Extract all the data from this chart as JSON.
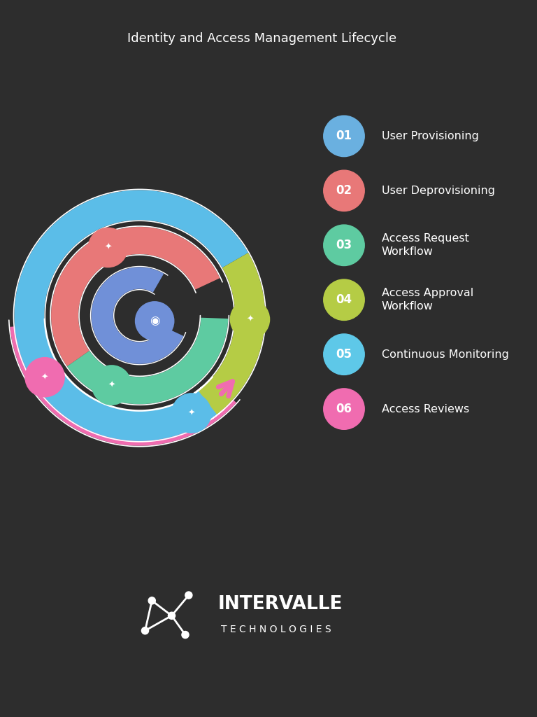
{
  "title": "Identity and Access Management Lifecycle",
  "background_color": "#2d2d2d",
  "title_color": "#ffffff",
  "title_fontsize": 13,
  "stages": [
    {
      "num": "01",
      "label": "User Provisioning",
      "color": "#6ab0e0"
    },
    {
      "num": "02",
      "label": "User Deprovisioning",
      "color": "#e87878"
    },
    {
      "num": "03",
      "label": "Access Request\nWorkflow",
      "color": "#5ecba1"
    },
    {
      "num": "04",
      "label": "Access Approval\nWorkflow",
      "color": "#b5cc45"
    },
    {
      "num": "05",
      "label": "Continuous Monitoring",
      "color": "#5ec8e8"
    },
    {
      "num": "06",
      "label": "Access Reviews",
      "color": "#f06cb0"
    }
  ],
  "spiral_blue": "#5bbde8",
  "spiral_red": "#e87878",
  "spiral_teal": "#5ecba1",
  "spiral_green": "#b5cc45",
  "spiral_pink": "#f06cb0",
  "spiral_indigo": "#7090d8",
  "brand_name_line1": "INTERVALLE",
  "brand_name_line2": "T E C H N O L O G I E S",
  "brand_color": "#ffffff"
}
